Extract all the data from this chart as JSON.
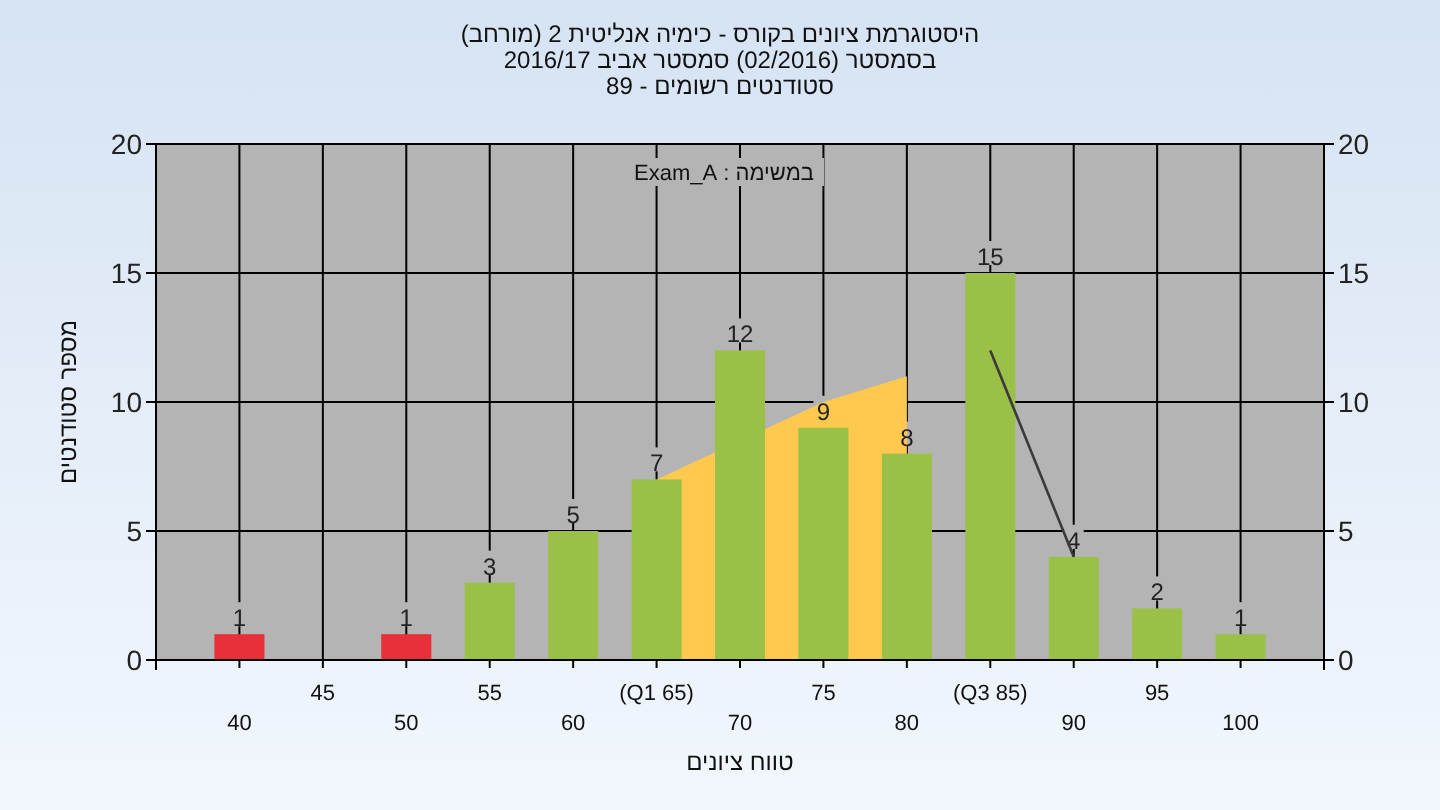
{
  "chart_data": {
    "type": "bar",
    "title": "היסטוגרמת ציונים בקורס - כימיה אנליטית 2 (מורחב)",
    "subtitle": "בסמסטר (02/2016) סמסטר אביב 2016/17\nסטודנטים רשומים - 89",
    "xlabel": "טווח ציונים",
    "ylabel": "מספר סטודנטים",
    "annotations": [
      "במשימה : Exam_A"
    ],
    "categories": [
      "40",
      "45",
      "50",
      "55",
      "60",
      "(Q1 65)",
      "70",
      "75",
      "80",
      "(Q3 85)",
      "90",
      "95",
      "100"
    ],
    "series": [
      {
        "type": "area",
        "color": "#ffc94f",
        "values": [
          null,
          null,
          null,
          null,
          null,
          7,
          null,
          10,
          11,
          null,
          null,
          null,
          null
        ]
      },
      {
        "values": [
          1,
          0,
          1,
          3,
          5,
          7,
          12,
          9,
          8,
          15,
          4,
          2,
          1
        ],
        "colors": [
          "#e8303a",
          "#9bc048",
          "#e8303a",
          "#9bc048",
          "#9bc048",
          "#9bc048",
          "#9bc048",
          "#9bc048",
          "#9bc048",
          "#9bc048",
          "#9bc048",
          "#9bc048",
          "#9bc048"
        ],
        "value_labels": [
          "1",
          null,
          "1",
          "3",
          "5",
          "7",
          "12",
          "9",
          "8",
          "15",
          "4",
          "2",
          "1"
        ]
      },
      {
        "type": "line",
        "color": "#3a3a3a",
        "values": [
          null,
          null,
          null,
          null,
          null,
          null,
          null,
          null,
          null,
          12,
          4,
          null,
          null
        ]
      }
    ],
    "ylim": [
      0,
      20
    ],
    "yticks": [
      0,
      5,
      10,
      15,
      20
    ],
    "y2lim": [
      0,
      20
    ],
    "y2ticks": [
      0,
      5,
      10,
      15,
      20
    ],
    "grid": true
  }
}
